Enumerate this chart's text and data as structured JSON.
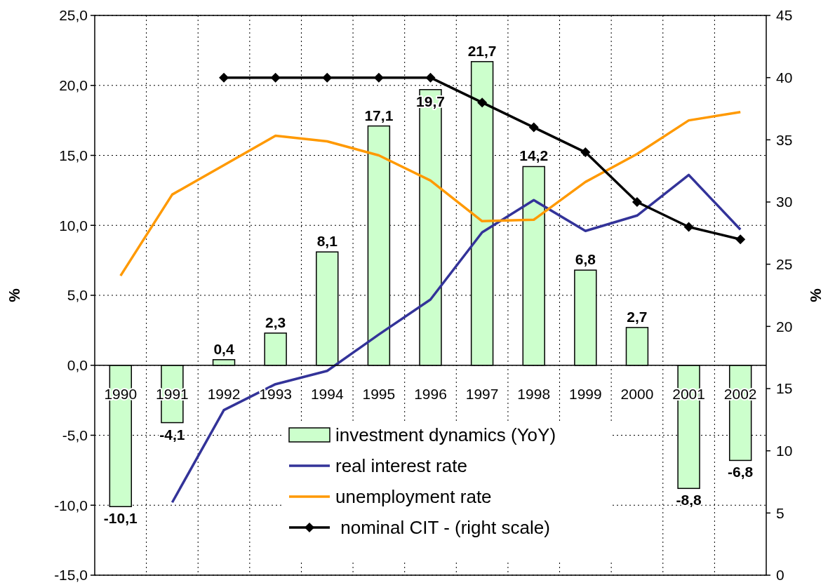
{
  "chart_data": {
    "type": "bar",
    "categories": [
      "1990",
      "1991",
      "1992",
      "1993",
      "1994",
      "1995",
      "1996",
      "1997",
      "1998",
      "1999",
      "2000",
      "2001",
      "2002"
    ],
    "series": [
      {
        "name": "investment dynamics (YoY)",
        "color": "#ccffcc",
        "values": [
          -10.1,
          -4.1,
          0.4,
          2.3,
          8.1,
          17.1,
          19.7,
          21.7,
          14.2,
          6.8,
          2.7,
          -8.8,
          -6.8
        ],
        "value_labels": [
          "-10,1",
          "-4,1",
          "0,4",
          "2,3",
          "8,1",
          "17,1",
          "19,7",
          "21,7",
          "14,2",
          "6,8",
          "2,7",
          "-8,8",
          "-6,8"
        ]
      },
      {
        "name": "real interest rate",
        "type": "line",
        "color": "#333399",
        "marker": "none",
        "values": [
          null,
          -9.8,
          -3.2,
          -1.35,
          -0.4,
          2.2,
          4.7,
          9.5,
          11.8,
          9.6,
          10.7,
          13.6,
          9.7
        ]
      },
      {
        "name": "unemployment rate",
        "type": "line",
        "color": "#ff9900",
        "marker": "none",
        "values": [
          6.4,
          12.2,
          14.3,
          16.4,
          16.0,
          15.0,
          13.2,
          10.3,
          10.4,
          13.1,
          15.1,
          17.5,
          18.1
        ]
      },
      {
        "name": " nominal CIT - (right scale)",
        "type": "line",
        "color": "#000000",
        "marker": "diamond",
        "axis": "y2",
        "values": [
          null,
          null,
          40,
          40,
          40,
          40,
          40,
          38,
          36,
          34,
          30,
          28,
          27
        ]
      }
    ],
    "ylabel": "%",
    "y2label": "%",
    "ylim": [
      -15,
      25
    ],
    "yticks": [
      {
        "value": -15,
        "label": "-15,0"
      },
      {
        "value": -10,
        "label": "-10,0"
      },
      {
        "value": -5,
        "label": "-5,0"
      },
      {
        "value": 0,
        "label": "0,0"
      },
      {
        "value": 5,
        "label": "5,0"
      },
      {
        "value": 10,
        "label": "10,0"
      },
      {
        "value": 15,
        "label": "15,0"
      },
      {
        "value": 20,
        "label": "20,0"
      },
      {
        "value": 25,
        "label": "25,0"
      }
    ],
    "y2lim": [
      0,
      45
    ],
    "y2ticks": [
      0,
      5,
      10,
      15,
      20,
      25,
      30,
      35,
      40,
      45
    ],
    "grid": true,
    "legend": "bottom"
  }
}
